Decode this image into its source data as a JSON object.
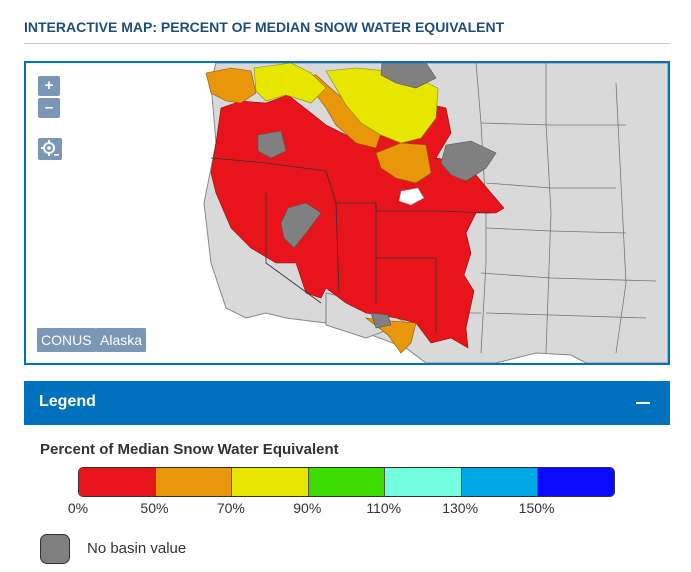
{
  "header": {
    "title": "INTERACTIVE MAP: PERCENT OF MEDIAN SNOW WATER EQUIVALENT"
  },
  "map": {
    "zoom_in_label": "+",
    "zoom_out_label": "–",
    "locate_icon": "locate-icon",
    "region_buttons": [
      "CONUS",
      "Alaska"
    ],
    "colors": {
      "background_state": "#d9d9d9",
      "state_border": "#888888",
      "no_data": "#808080"
    }
  },
  "legend": {
    "header": "Legend",
    "scale_title": "Percent of Median Snow Water Equivalent",
    "scale_colors": [
      "#e8141c",
      "#e8960a",
      "#e6e600",
      "#3edb00",
      "#73ffdf",
      "#00a9e6",
      "#0a0aff"
    ],
    "ticks": [
      "0%",
      "50%",
      "70%",
      "90%",
      "110%",
      "130%",
      "150%"
    ],
    "no_basin_label": "No basin value",
    "no_basin_color": "#808080"
  }
}
